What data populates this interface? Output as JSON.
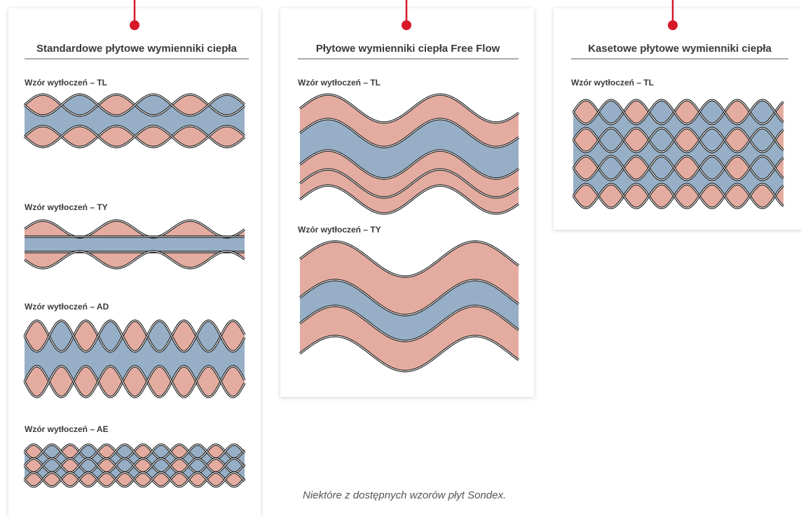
{
  "cards": [
    {
      "title": "Standardowe płytowe wymienniki ciepła",
      "patterns": [
        {
          "label": "Wzór wytłoczeń – TL"
        },
        {
          "label": "Wzór wytłoczeń – TY"
        },
        {
          "label": "Wzór wytłoczeń – AD"
        },
        {
          "label": "Wzór wytłoczeń – AE"
        }
      ]
    },
    {
      "title": "Płytowe wymienniki ciepła Free Flow",
      "patterns": [
        {
          "label": "Wzór wytłoczeń – TL"
        },
        {
          "label": "Wzór wytłoczeń – TY"
        }
      ]
    },
    {
      "title": "Kasetowe płytowe wymienniki ciepła",
      "patterns": [
        {
          "label": "Wzór wytłoczeń – TL"
        }
      ]
    }
  ],
  "caption": "Niektóre z dostępnych wzorów płyt Sondex."
}
